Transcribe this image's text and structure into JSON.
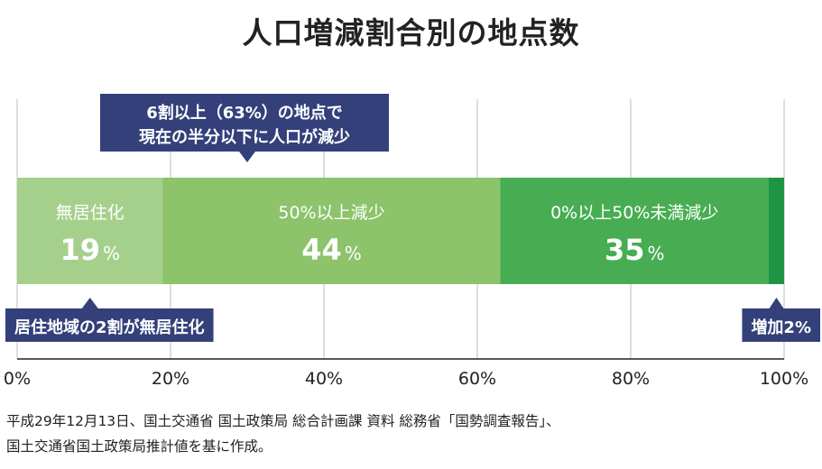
{
  "title": "人口増減割合別の地点数",
  "chart_data": {
    "type": "bar",
    "orientation": "horizontal",
    "stacked": true,
    "xlim": [
      0,
      100
    ],
    "x_ticks": [
      "0%",
      "20%",
      "40%",
      "60%",
      "80%",
      "100%"
    ],
    "grid": true,
    "categories": [
      "無居住化",
      "50%以上減少",
      "0%以上50%未満減少",
      "増加2%"
    ],
    "segments": [
      {
        "label": "無居住化",
        "value": 19,
        "display": "19",
        "color": "#a5d08c"
      },
      {
        "label": "50%以上減少",
        "value": 44,
        "display": "44",
        "color": "#8cc36b"
      },
      {
        "label": "0%以上50%未満減少",
        "value": 35,
        "display": "35",
        "color": "#48ad52"
      },
      {
        "label": "増加2%",
        "value": 2,
        "display": "",
        "color": "#1e9444"
      }
    ],
    "percent_unit": "%",
    "annotations": [
      {
        "lines": [
          "6割以上（63%）の地点で",
          "現在の半分以下に人口が減少"
        ],
        "pointer_x": 30,
        "position": "above"
      },
      {
        "lines": [
          "居住地域の2割が無居住化"
        ],
        "pointer_x": 9.5,
        "position": "below"
      },
      {
        "lines": [
          "増加2%"
        ],
        "pointer_x": 99,
        "position": "below"
      }
    ]
  },
  "source": [
    "平成29年12月13日、国土交通省 国土政策局 総合計画課 資料 総務省「国勢調査報告」、",
    "国土交通省国土政策局推計値を基に作成。"
  ],
  "colors": {
    "callout": "#34407a",
    "grid": "#c8c8c8",
    "axis": "#222222"
  }
}
